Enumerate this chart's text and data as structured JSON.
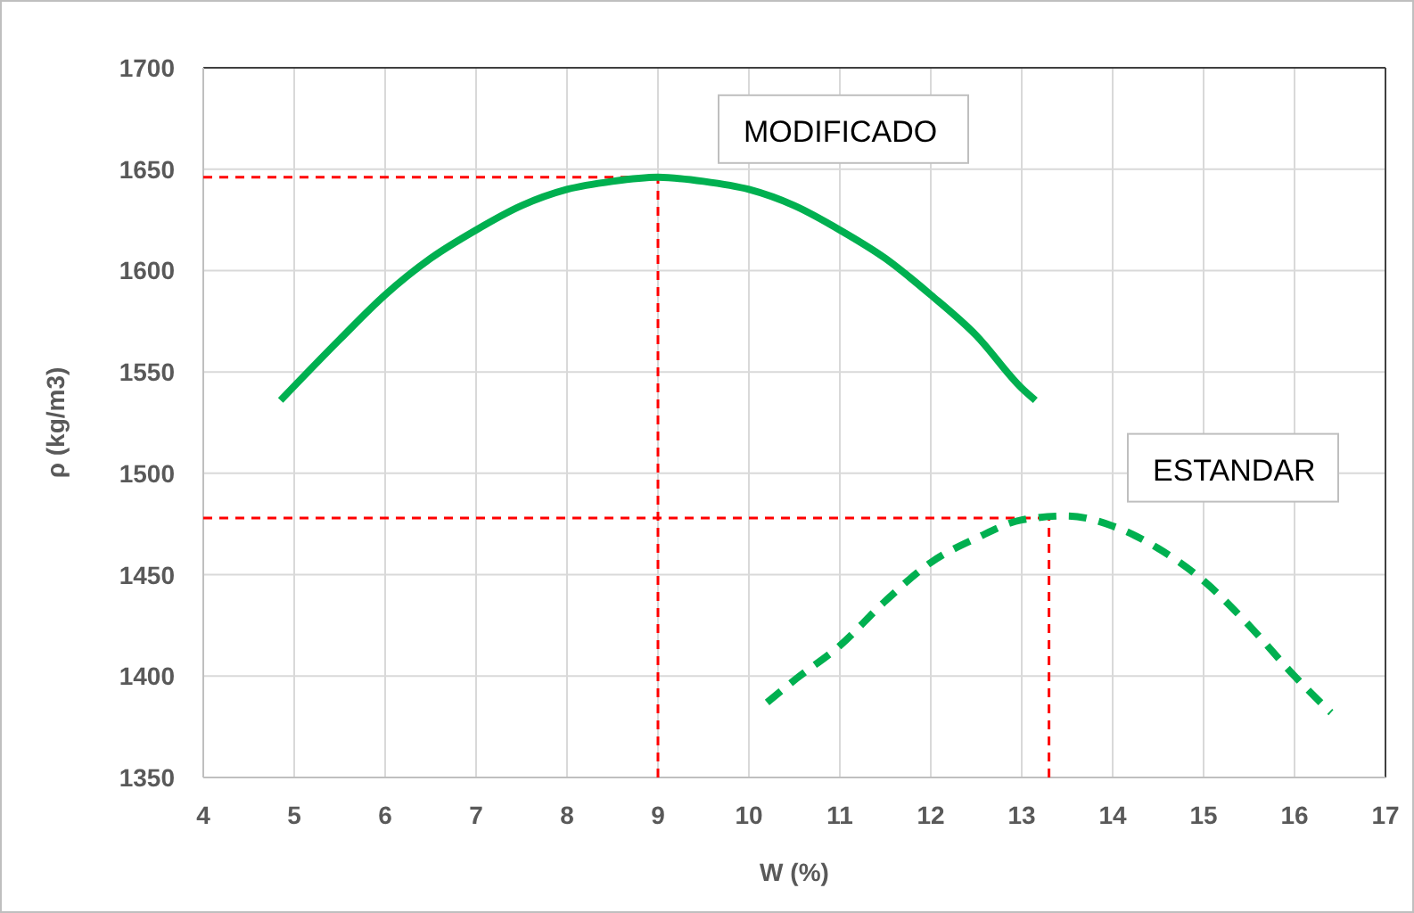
{
  "chart_data": {
    "type": "line",
    "xlabel": "W (%)",
    "ylabel": "ρ (kg/m3)",
    "xlim": [
      4,
      17
    ],
    "xticks": [
      4,
      5,
      6,
      7,
      8,
      9,
      10,
      11,
      12,
      13,
      14,
      15,
      16,
      17
    ],
    "ylim": [
      1350,
      1700
    ],
    "yticks": [
      1350,
      1400,
      1450,
      1500,
      1550,
      1600,
      1650,
      1700
    ],
    "grid": true,
    "series": [
      {
        "name": "MODIFICADO",
        "color": "#00b050",
        "line_style": "solid",
        "x": [
          4.85,
          5.5,
          6,
          6.5,
          7,
          7.5,
          8,
          8.5,
          9,
          9.5,
          10,
          10.5,
          11,
          11.5,
          12,
          12.5,
          13,
          13.15
        ],
        "values": [
          1536,
          1566,
          1588,
          1606,
          1620,
          1632,
          1640,
          1644,
          1646,
          1644,
          1640,
          1632,
          1620,
          1606,
          1588,
          1568,
          1542,
          1536
        ]
      },
      {
        "name": "ESTANDAR",
        "color": "#00b050",
        "line_style": "dashed",
        "x": [
          10.2,
          10.5,
          11,
          11.5,
          12,
          12.5,
          13,
          13.5,
          14,
          14.5,
          15,
          15.5,
          16,
          16.4
        ],
        "values": [
          1387,
          1398,
          1415,
          1437,
          1456,
          1468,
          1477,
          1479,
          1474,
          1463,
          1447,
          1425,
          1400,
          1382
        ]
      }
    ],
    "ref_lines": [
      {
        "axis": "y",
        "value": 1646,
        "color": "#ff0000",
        "line_style": "dashed"
      },
      {
        "axis": "x",
        "value": 9,
        "color": "#ff0000",
        "line_style": "dashed"
      },
      {
        "axis": "y",
        "value": 1478,
        "color": "#ff0000",
        "line_style": "dashed"
      },
      {
        "axis": "x",
        "value": 13.3,
        "color": "#ff0000",
        "line_style": "dashed"
      }
    ]
  }
}
